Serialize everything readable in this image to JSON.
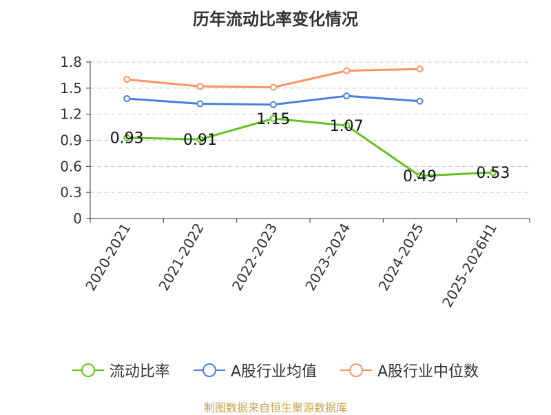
{
  "title": "历年流动比率变化情况",
  "source": "制图数据来自恒生聚源数据库",
  "colors": {
    "current_ratio": "#5cc41e",
    "industry_mean": "#4a7fdc",
    "industry_median": "#ff9360",
    "source_text": "#c8a24a"
  },
  "chart_data": {
    "type": "line",
    "categories": [
      "2020-2021",
      "2021-2022",
      "2022-2023",
      "2023-2024",
      "2024-2025",
      "2025-2026H1"
    ],
    "ylim": [
      0,
      1.8
    ],
    "yticks": [
      0,
      0.3,
      0.6,
      0.9,
      1.2,
      1.5,
      1.8
    ],
    "ytick_labels": [
      "0",
      "0.3",
      "0.6",
      "0.9",
      "1.2",
      "1.5",
      "1.8"
    ],
    "grid": true,
    "legend_position": "bottom",
    "series": [
      {
        "name": "流动比率",
        "color": "#5cc41e",
        "values": [
          0.93,
          0.91,
          1.15,
          1.07,
          0.49,
          0.53
        ],
        "labels": [
          "0.93",
          "0.91",
          "1.15",
          "1.07",
          "0.49",
          "0.53"
        ]
      },
      {
        "name": "A股行业均值",
        "color": "#4a7fdc",
        "values": [
          1.38,
          1.32,
          1.31,
          1.41,
          1.35,
          null
        ]
      },
      {
        "name": "A股行业中位数",
        "color": "#ff9360",
        "values": [
          1.6,
          1.52,
          1.51,
          1.7,
          1.72,
          null
        ]
      }
    ]
  }
}
